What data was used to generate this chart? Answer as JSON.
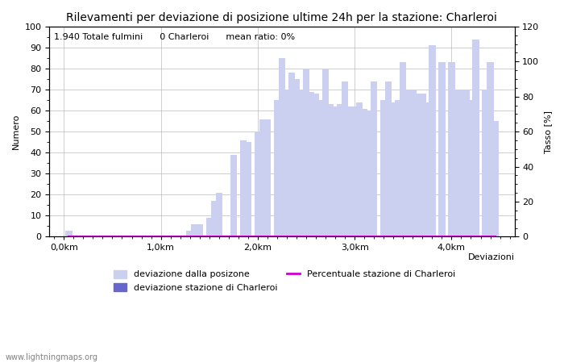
{
  "title": "Rilevamenti per deviazione di posizione ultime 24h per la stazione: Charleroi",
  "annotation": "1.940 Totale fulmini      0 Charleroi      mean ratio: 0%",
  "xlabel": "Deviazioni",
  "ylabel_left": "Numero",
  "ylabel_right": "Tasso [%]",
  "watermark": "www.lightningmaps.org",
  "legend": [
    {
      "label": "deviazione dalla posizone",
      "color": "#ccd0f0"
    },
    {
      "label": "deviazione stazione di Charleroi",
      "color": "#6666cc"
    },
    {
      "label": "Percentuale stazione di Charleroi",
      "color": "#cc00cc"
    }
  ],
  "x_ticks_km": [
    0.0,
    1.0,
    2.0,
    3.0,
    4.0
  ],
  "x_tick_labels": [
    "0,0km",
    "1,0km",
    "2,0km",
    "3,0km",
    "4,0km"
  ],
  "ylim_left": [
    0,
    100
  ],
  "ylim_right": [
    0,
    120
  ],
  "bar_width": 0.07,
  "positions_km": [
    0.05,
    0.1,
    0.15,
    0.2,
    0.25,
    0.3,
    0.35,
    0.4,
    0.45,
    0.5,
    0.55,
    0.6,
    0.65,
    0.7,
    0.75,
    0.8,
    0.85,
    0.9,
    0.95,
    1.0,
    1.05,
    1.1,
    1.15,
    1.2,
    1.25,
    1.3,
    1.35,
    1.4,
    1.45,
    1.5,
    1.55,
    1.6,
    1.65,
    1.7,
    1.75,
    1.8,
    1.85,
    1.9,
    1.95,
    2.0,
    2.05,
    2.1,
    2.15,
    2.2,
    2.25,
    2.3,
    2.35,
    2.4,
    2.45,
    2.5,
    2.55,
    2.6,
    2.65,
    2.7,
    2.75,
    2.8,
    2.85,
    2.9,
    2.95,
    3.0,
    3.05,
    3.1,
    3.15,
    3.2,
    3.25,
    3.3,
    3.35,
    3.4,
    3.45,
    3.5,
    3.55,
    3.6,
    3.65,
    3.7,
    3.75,
    3.8,
    3.85,
    3.9,
    3.95,
    4.0,
    4.05,
    4.1,
    4.15,
    4.2,
    4.25,
    4.3,
    4.35,
    4.4,
    4.45
  ],
  "heights_total": [
    3,
    0,
    0,
    0,
    0,
    0,
    0,
    0,
    0,
    0,
    0,
    0,
    0,
    0,
    0,
    0,
    0,
    0,
    0,
    0,
    0,
    0,
    0,
    0,
    0,
    3,
    6,
    6,
    0,
    9,
    17,
    21,
    0,
    0,
    39,
    0,
    46,
    45,
    0,
    50,
    56,
    56,
    0,
    65,
    85,
    70,
    78,
    75,
    70,
    80,
    69,
    68,
    65,
    80,
    63,
    62,
    63,
    74,
    62,
    62,
    64,
    61,
    60,
    74,
    0,
    65,
    74,
    64,
    65,
    83,
    70,
    70,
    68,
    68,
    64,
    91,
    0,
    83,
    0,
    83,
    70,
    70,
    70,
    65,
    94,
    0,
    70,
    83,
    55
  ],
  "heights_charleroi": [
    0,
    0,
    0,
    0,
    0,
    0,
    0,
    0,
    0,
    0,
    0,
    0,
    0,
    0,
    0,
    0,
    0,
    0,
    0,
    0,
    0,
    0,
    0,
    0,
    0,
    0,
    0,
    0,
    0,
    0,
    0,
    0,
    0,
    0,
    0,
    0,
    0,
    0,
    0,
    0,
    0,
    0,
    0,
    0,
    0,
    0,
    0,
    0,
    0,
    0,
    0,
    0,
    0,
    0,
    0,
    0,
    0,
    0,
    0,
    0,
    0,
    0,
    0,
    0,
    0,
    0,
    0,
    0,
    0,
    0,
    0,
    0,
    0,
    0,
    0,
    0,
    0,
    0,
    0,
    0,
    0,
    0,
    0,
    0,
    0,
    0,
    0,
    0,
    0
  ],
  "background_color": "#ffffff",
  "grid_color": "#aaaaaa",
  "bar_color_total": "#ccd0f0",
  "bar_color_charleroi": "#6666cc",
  "line_color_percentage": "#cc00cc",
  "title_fontsize": 10,
  "label_fontsize": 8,
  "tick_fontsize": 8,
  "annotation_fontsize": 8
}
